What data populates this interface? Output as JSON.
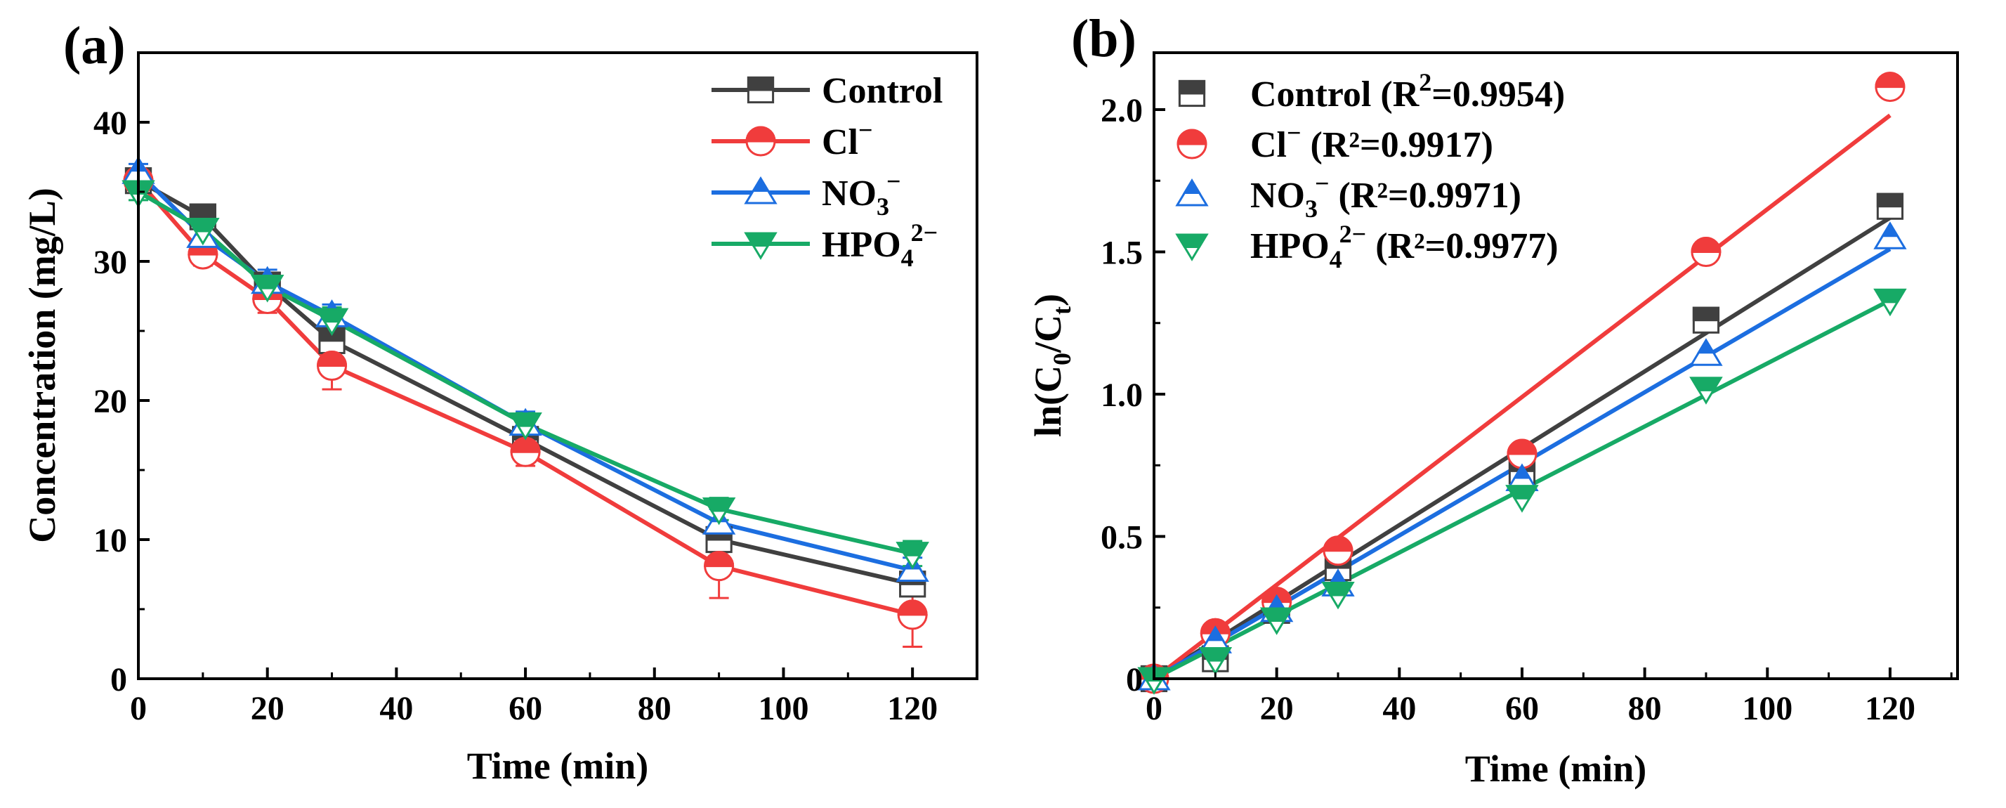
{
  "colors": {
    "Control": "#404040",
    "Cl": "#f03c3c",
    "NO3": "#1c6ee0",
    "HPO4": "#17aa66"
  },
  "chart_data": [
    {
      "type": "line",
      "panel_label": "(a)",
      "xlabel": "Time (min)",
      "ylabel": "Concentration (mg/L)",
      "xlim": [
        0,
        130
      ],
      "ylim": [
        0,
        45
      ],
      "xticks": [
        "0",
        "20",
        "40",
        "60",
        "80",
        "100",
        "120"
      ],
      "yticks": [
        "0",
        "10",
        "20",
        "30",
        "40"
      ],
      "legend_position": "top-right",
      "x": [
        0,
        10,
        20,
        30,
        60,
        90,
        120
      ],
      "series": [
        {
          "key": "Control",
          "name": "Control",
          "name_sup": "",
          "name_sub": "",
          "name_after": "",
          "marker": "square",
          "values": [
            35.8,
            33.2,
            28.3,
            24.3,
            17.2,
            10.0,
            6.8
          ],
          "errors": [
            0.6,
            0.6,
            0.8,
            1.0,
            0.8,
            0.9,
            0.8
          ]
        },
        {
          "key": "Cl",
          "name": "Cl",
          "name_sup": "−",
          "name_sub": "",
          "name_after": "",
          "marker": "circle",
          "values": [
            35.8,
            30.5,
            27.3,
            22.5,
            16.3,
            8.1,
            4.6
          ],
          "errors": [
            0.6,
            0.8,
            1.0,
            1.7,
            1.0,
            2.3,
            2.3
          ]
        },
        {
          "key": "NO3",
          "name": "NO",
          "name_sup": "−",
          "name_sub": "3",
          "name_after": "",
          "marker": "triangle-up",
          "values": [
            36.4,
            31.8,
            28.5,
            26.1,
            18.3,
            11.2,
            7.8
          ],
          "errors": [
            0.6,
            0.8,
            0.9,
            0.8,
            0.9,
            1.0,
            0.9
          ]
        },
        {
          "key": "HPO4",
          "name": "HPO",
          "name_sup": "2−",
          "name_sub": "4",
          "name_after": "",
          "marker": "triangle-down",
          "values": [
            35.0,
            32.3,
            28.2,
            25.8,
            18.3,
            12.2,
            9.0
          ],
          "errors": [
            0.6,
            0.7,
            0.8,
            0.9,
            0.8,
            0.8,
            0.9
          ]
        }
      ]
    },
    {
      "type": "scatter",
      "panel_label": "(b)",
      "xlabel": "Time (min)",
      "ylabel_prefix": "ln(C",
      "ylabel_sub1": "0",
      "ylabel_mid": "/C",
      "ylabel_sub2": "t",
      "ylabel_suffix": ")",
      "xlim": [
        0,
        131
      ],
      "ylim": [
        0,
        2.2
      ],
      "xticks": [
        "0",
        "20",
        "40",
        "60",
        "80",
        "100",
        "120"
      ],
      "yticks": [
        "0",
        "0.5",
        "1.0",
        "1.5",
        "2.0"
      ],
      "legend_position": "top-left",
      "x": [
        0,
        10,
        20,
        30,
        60,
        90,
        120
      ],
      "series": [
        {
          "key": "Control",
          "name": "Control (R",
          "name_sup": "2",
          "name_sub": "",
          "name_after": "=0.9954)",
          "marker": "square",
          "values": [
            0.0,
            0.07,
            0.24,
            0.39,
            0.73,
            1.26,
            1.66
          ],
          "fit_end": 1.62
        },
        {
          "key": "Cl",
          "name": "Cl",
          "name_sup": "−",
          "name_sub": "",
          "name_after": " (R²=0.9917)",
          "marker": "circle",
          "values": [
            0.0,
            0.16,
            0.27,
            0.45,
            0.79,
            1.5,
            2.08
          ],
          "fit_end": 1.98
        },
        {
          "key": "NO3",
          "name": "NO",
          "name_sup": "−",
          "name_sub": "3",
          "name_after": " (R²=0.9971)",
          "marker": "triangle-up",
          "values": [
            0.0,
            0.13,
            0.24,
            0.33,
            0.7,
            1.14,
            1.55
          ],
          "fit_end": 1.51
        },
        {
          "key": "HPO4",
          "name": "HPO",
          "name_sup": "2−",
          "name_sub": "4",
          "name_after": " (R²=0.9977)",
          "marker": "triangle-down",
          "values": [
            0.0,
            0.07,
            0.21,
            0.3,
            0.64,
            1.02,
            1.33
          ],
          "fit_end": 1.33
        }
      ]
    }
  ]
}
